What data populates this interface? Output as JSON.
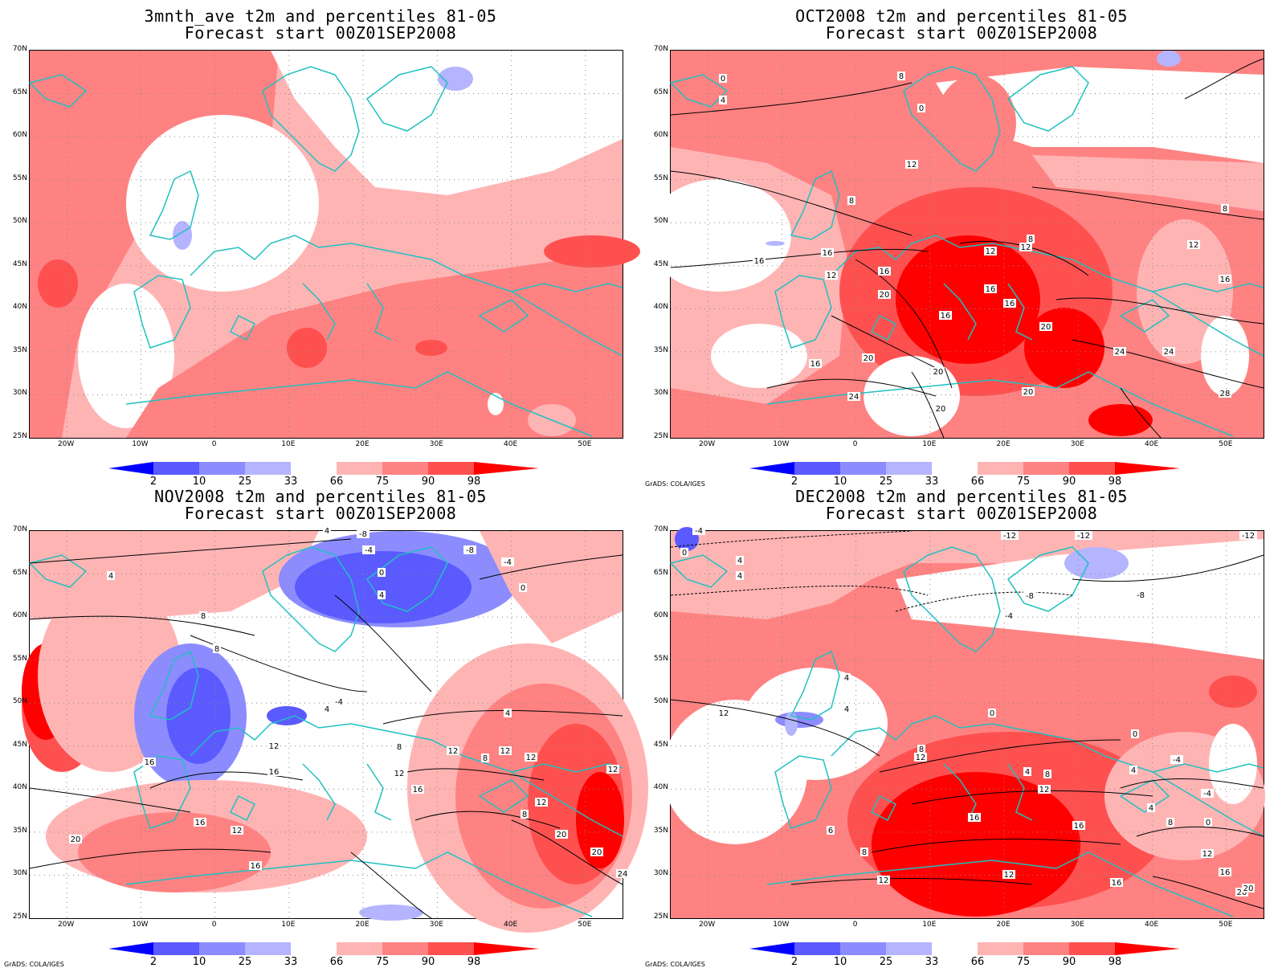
{
  "panels": [
    {
      "title1": "3mnth_ave t2m and percentiles 81-05",
      "title2": "Forecast start 00Z01SEP2008",
      "credit": "",
      "contours": false
    },
    {
      "title1": "OCT2008 t2m and percentiles 81-05",
      "title2": "Forecast start 00Z01SEP2008",
      "credit": "GrADS: COLA/IGES",
      "contours": true
    },
    {
      "title1": "NOV2008 t2m and percentiles 81-05",
      "title2": "Forecast start 00Z01SEP2008",
      "credit": "GrADS: COLA/IGES",
      "contours": true
    },
    {
      "title1": "DEC2008 t2m and percentiles 81-05",
      "title2": "Forecast start 00Z01SEP2008",
      "credit": "GrADS: COLA/IGES",
      "contours": true
    }
  ],
  "lat_labels": [
    "70N",
    "65N",
    "60N",
    "55N",
    "50N",
    "45N",
    "40N",
    "35N",
    "30N",
    "25N"
  ],
  "lon_labels": [
    "20W",
    "10W",
    "0",
    "10E",
    "20E",
    "30E",
    "40E",
    "50E"
  ],
  "colorbar": {
    "labels": [
      "2",
      "10",
      "25",
      "33",
      "66",
      "75",
      "90",
      "98"
    ],
    "colors": [
      "#0000ff",
      "#5a5aff",
      "#8c8cff",
      "#b4b4ff",
      "#ffffff",
      "#ffb4b4",
      "#ff8282",
      "#ff5050",
      "#ff0000"
    ]
  },
  "contour_labels": {
    "oct": [
      "0",
      "4",
      "8",
      "8",
      "0",
      "12",
      "16",
      "16",
      "12",
      "16",
      "20",
      "16",
      "16",
      "20",
      "12",
      "8",
      "12",
      "16",
      "16",
      "20",
      "24",
      "20",
      "20",
      "24",
      "20",
      "28",
      "24",
      "8",
      "12",
      "16"
    ],
    "nov": [
      "4",
      "4",
      "-4",
      "-8",
      "-8",
      "-4",
      "0",
      "4",
      "8",
      "8",
      "0",
      "12",
      "-4",
      "4",
      "4",
      "12",
      "8",
      "12",
      "12",
      "16",
      "16",
      "12",
      "12",
      "16",
      "20",
      "16",
      "20",
      "12",
      "16",
      "20",
      "24",
      "8",
      "8",
      "12"
    ],
    "dec": [
      "-4",
      "0",
      "4",
      "4",
      "-12",
      "-12",
      "-8",
      "-4",
      "-8",
      "-12",
      "0",
      "4",
      "4",
      "12",
      "8",
      "12",
      "0",
      "4",
      "8",
      "4",
      "12",
      "16",
      "16",
      "12",
      "12",
      "16",
      "20",
      "6",
      "8",
      "-4",
      "0",
      "4",
      "8",
      "-4",
      "12",
      "16",
      "20"
    ]
  }
}
